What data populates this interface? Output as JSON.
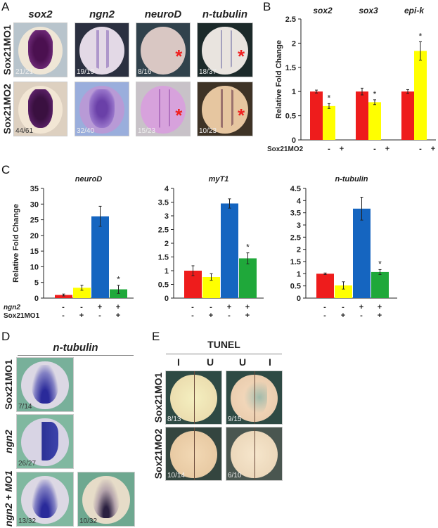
{
  "panels": {
    "A": "A",
    "B": "B",
    "C": "C",
    "D": "D",
    "E": "E"
  },
  "panel_a": {
    "columns": [
      "sox2",
      "ngn2",
      "neuroD",
      "n-tubulin"
    ],
    "rows": [
      "Sox21MO1",
      "Sox21MO2"
    ],
    "counts": [
      [
        "21/21",
        "19/19",
        "8/16",
        "18/37"
      ],
      [
        "44/61",
        "32/40",
        "15/23",
        "10/23"
      ]
    ],
    "asterisk": "*"
  },
  "panel_d": {
    "title": "n-tubulin",
    "rows": [
      "Sox21MO1",
      "ngn2",
      "ngn2 + MO1"
    ],
    "counts": [
      "7/14",
      "26/27",
      "13/32",
      "10/32"
    ]
  },
  "panel_e": {
    "title": "TUNEL",
    "columns": [
      "I",
      "U",
      "U",
      "I"
    ],
    "rows": [
      "Sox21MO1",
      "Sox21MO2"
    ],
    "counts": [
      "8/13",
      "9/15",
      "10/14",
      "6/10"
    ]
  },
  "colors": {
    "control": "#ee1c1c",
    "mo": "#ffff00",
    "ngn2": "#1565c0",
    "ngn2_mo": "#1fa83a"
  },
  "chart_data": [
    {
      "type": "bar",
      "panel": "B",
      "ylabel": "Relative Fold Change",
      "ylim": [
        0,
        2.5
      ],
      "yticks": [
        "0",
        "0.5",
        "1",
        "1.5",
        "2",
        "2.5"
      ],
      "groups": [
        {
          "title": "sox2",
          "values": [
            1.0,
            0.7
          ],
          "errors": [
            0.03,
            0.05
          ],
          "significant": [
            false,
            true
          ]
        },
        {
          "title": "sox3",
          "values": [
            1.0,
            0.78
          ],
          "errors": [
            0.07,
            0.05
          ],
          "significant": [
            false,
            true
          ]
        },
        {
          "title": "epi-k",
          "values": [
            1.0,
            1.84
          ],
          "errors": [
            0.04,
            0.19
          ],
          "significant": [
            false,
            true
          ]
        }
      ],
      "condition_rows": [
        {
          "label": "Sox21MO2",
          "marks": [
            "-",
            "+"
          ]
        }
      ]
    },
    {
      "type": "bar",
      "panel": "C",
      "title": "neuroD",
      "ylabel": "Relative Fold Change",
      "ylim": [
        0,
        35
      ],
      "yticks": [
        "0",
        "5",
        "10",
        "15",
        "20",
        "25",
        "30",
        "35"
      ],
      "values": [
        1.0,
        3.3,
        26.1,
        2.8
      ],
      "errors": [
        0.3,
        0.8,
        3.2,
        1.3
      ],
      "significant": [
        false,
        false,
        false,
        true
      ],
      "condition_rows": [
        {
          "label": "ngn2",
          "marks": [
            "-",
            "-",
            "+",
            "+"
          ]
        },
        {
          "label": "Sox21MO1",
          "marks": [
            "-",
            "+",
            "-",
            "+"
          ]
        }
      ]
    },
    {
      "type": "bar",
      "panel": "C",
      "title": "myT1",
      "ylim": [
        0,
        4
      ],
      "yticks": [
        "0",
        "0.5",
        "1",
        "1.5",
        "2",
        "2.5",
        "3",
        "3.5",
        "4"
      ],
      "values": [
        1.0,
        0.77,
        3.45,
        1.45
      ],
      "errors": [
        0.18,
        0.12,
        0.17,
        0.2
      ],
      "significant": [
        false,
        false,
        false,
        true
      ],
      "condition_rows": [
        {
          "label": "",
          "marks": [
            "-",
            "-",
            "+",
            "+"
          ]
        },
        {
          "label": "",
          "marks": [
            "-",
            "+",
            "-",
            "+"
          ]
        }
      ]
    },
    {
      "type": "bar",
      "panel": "C",
      "title": "n-tubulin",
      "ylim": [
        0,
        4.5
      ],
      "yticks": [
        "0",
        "0.5",
        "1",
        "1.5",
        "2",
        "2.5",
        "3",
        "3.5",
        "4",
        "4.5"
      ],
      "values": [
        1.0,
        0.52,
        3.67,
        1.07
      ],
      "errors": [
        0.03,
        0.15,
        0.47,
        0.1
      ],
      "significant": [
        false,
        false,
        false,
        true
      ],
      "condition_rows": [
        {
          "label": "",
          "marks": [
            "-",
            "-",
            "+",
            "+"
          ]
        },
        {
          "label": "",
          "marks": [
            "-",
            "+",
            "-",
            "+"
          ]
        }
      ]
    }
  ]
}
